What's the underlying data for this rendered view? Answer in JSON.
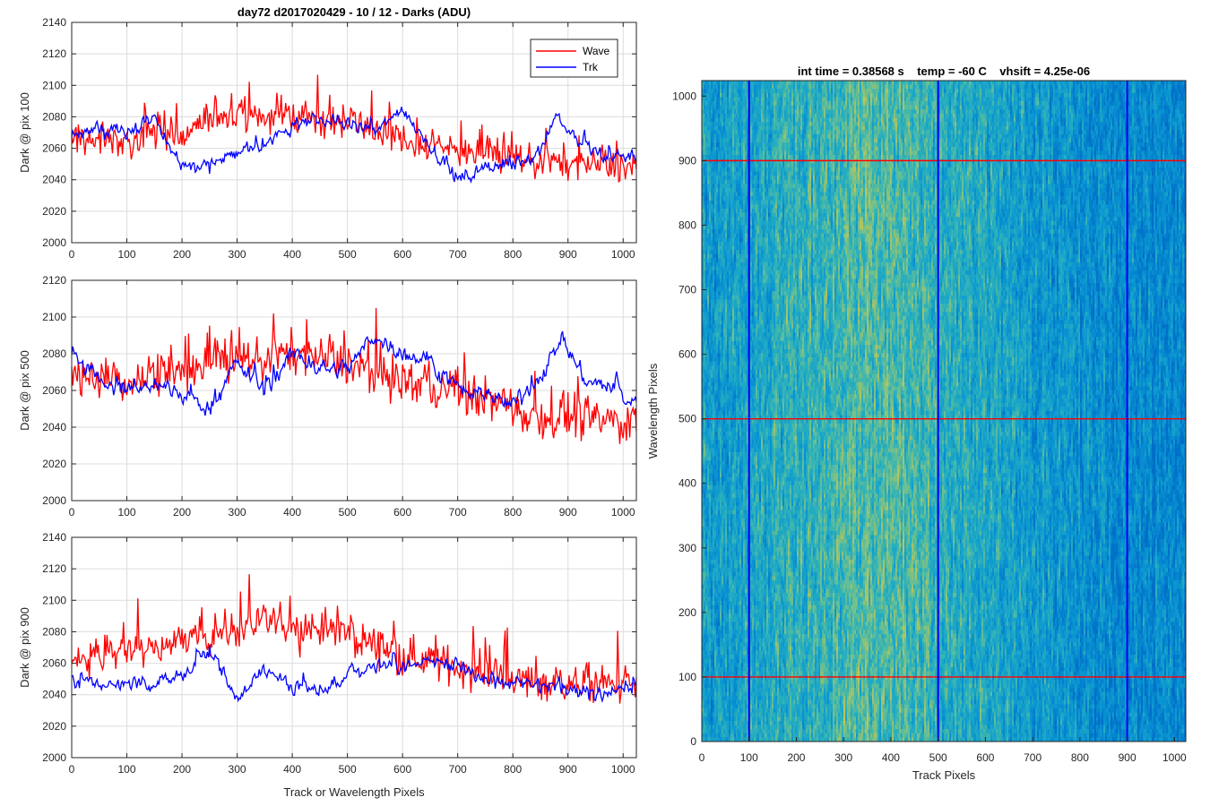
{
  "figure": {
    "title": "day72 d2017020429 - 10 / 12 - Darks (ADU)"
  },
  "chart_data": [
    {
      "type": "line",
      "ylabel": "Dark @ pix 100",
      "xlabel": "",
      "xlim": [
        0,
        1024
      ],
      "ylim": [
        2000,
        2140
      ],
      "xticks": [
        0,
        100,
        200,
        300,
        400,
        500,
        600,
        700,
        800,
        900,
        1000
      ],
      "yticks": [
        2000,
        2020,
        2040,
        2060,
        2080,
        2100,
        2120,
        2140
      ],
      "grid": true,
      "legend": {
        "position": "top-right",
        "entries": [
          "Wave",
          "Trk"
        ]
      },
      "series": [
        {
          "name": "Wave",
          "color": "#ff0000",
          "x": [
            0,
            50,
            100,
            150,
            200,
            250,
            300,
            350,
            400,
            450,
            500,
            550,
            600,
            650,
            700,
            750,
            800,
            850,
            900,
            950,
            1024
          ],
          "values": [
            2065,
            2068,
            2062,
            2070,
            2066,
            2078,
            2082,
            2080,
            2083,
            2078,
            2076,
            2072,
            2066,
            2062,
            2060,
            2056,
            2054,
            2052,
            2050,
            2050,
            2048
          ],
          "noise": 11
        },
        {
          "name": "Trk",
          "color": "#0000ff",
          "x": [
            0,
            50,
            100,
            150,
            200,
            250,
            300,
            350,
            400,
            450,
            500,
            550,
            600,
            650,
            700,
            750,
            800,
            850,
            880,
            920,
            960,
            1024
          ],
          "values": [
            2068,
            2072,
            2070,
            2078,
            2050,
            2048,
            2058,
            2062,
            2074,
            2078,
            2075,
            2070,
            2085,
            2062,
            2040,
            2048,
            2048,
            2060,
            2082,
            2062,
            2055,
            2056
          ],
          "noise": 7
        }
      ]
    },
    {
      "type": "line",
      "ylabel": "Dark @ pix 500",
      "xlabel": "",
      "xlim": [
        0,
        1024
      ],
      "ylim": [
        2000,
        2120
      ],
      "xticks": [
        0,
        100,
        200,
        300,
        400,
        500,
        600,
        700,
        800,
        900,
        1000
      ],
      "yticks": [
        2000,
        2020,
        2040,
        2060,
        2080,
        2100,
        2120
      ],
      "grid": true,
      "series": [
        {
          "name": "Wave",
          "color": "#ff0000",
          "x": [
            0,
            50,
            100,
            150,
            200,
            250,
            300,
            350,
            400,
            450,
            500,
            550,
            600,
            650,
            700,
            750,
            800,
            850,
            900,
            950,
            1024
          ],
          "values": [
            2068,
            2066,
            2064,
            2070,
            2070,
            2075,
            2076,
            2078,
            2080,
            2078,
            2075,
            2070,
            2066,
            2062,
            2060,
            2056,
            2050,
            2046,
            2046,
            2044,
            2042
          ],
          "noise": 12
        },
        {
          "name": "Trk",
          "color": "#0000ff",
          "x": [
            0,
            50,
            100,
            150,
            200,
            250,
            300,
            350,
            400,
            450,
            500,
            550,
            600,
            650,
            700,
            750,
            800,
            850,
            890,
            930,
            970,
            1024
          ],
          "values": [
            2080,
            2066,
            2060,
            2064,
            2058,
            2050,
            2075,
            2060,
            2080,
            2072,
            2072,
            2090,
            2080,
            2076,
            2060,
            2058,
            2052,
            2068,
            2088,
            2066,
            2062,
            2052
          ],
          "noise": 7
        }
      ]
    },
    {
      "type": "line",
      "ylabel": "Dark @ pix 900",
      "xlabel": "Track or Wavelength Pixels",
      "xlim": [
        0,
        1024
      ],
      "ylim": [
        2000,
        2140
      ],
      "xticks": [
        0,
        100,
        200,
        300,
        400,
        500,
        600,
        700,
        800,
        900,
        1000
      ],
      "yticks": [
        2000,
        2020,
        2040,
        2060,
        2080,
        2100,
        2120,
        2140
      ],
      "grid": true,
      "series": [
        {
          "name": "Wave",
          "color": "#ff0000",
          "x": [
            0,
            50,
            100,
            150,
            200,
            250,
            300,
            350,
            400,
            450,
            500,
            550,
            600,
            650,
            700,
            750,
            800,
            850,
            900,
            950,
            1024
          ],
          "values": [
            2066,
            2064,
            2068,
            2070,
            2074,
            2078,
            2082,
            2086,
            2084,
            2082,
            2078,
            2072,
            2066,
            2062,
            2058,
            2054,
            2050,
            2048,
            2047,
            2046,
            2046
          ],
          "noise": 12
        },
        {
          "name": "Trk",
          "color": "#0000ff",
          "x": [
            0,
            50,
            100,
            150,
            200,
            250,
            300,
            350,
            400,
            450,
            500,
            550,
            600,
            650,
            700,
            750,
            800,
            850,
            900,
            950,
            1024
          ],
          "values": [
            2050,
            2046,
            2046,
            2048,
            2052,
            2068,
            2038,
            2056,
            2046,
            2040,
            2054,
            2060,
            2058,
            2060,
            2058,
            2050,
            2046,
            2044,
            2044,
            2042,
            2044
          ],
          "noise": 7
        }
      ]
    },
    {
      "type": "heatmap",
      "title": "int time = 0.38568 s    temp = -60 C    vhsift = 4.25e-06",
      "xlabel": "Track Pixels",
      "ylabel": "Wavelength Pixels",
      "xlim": [
        0,
        1024
      ],
      "ylim": [
        0,
        1024
      ],
      "xticks": [
        0,
        100,
        200,
        300,
        400,
        500,
        600,
        700,
        800,
        900,
        1000
      ],
      "yticks": [
        0,
        100,
        200,
        300,
        400,
        500,
        600,
        700,
        800,
        900,
        1000
      ],
      "colormap": "parula",
      "row_markers": {
        "color": "#ff0000",
        "values": [
          100,
          500,
          900
        ]
      },
      "column_markers": {
        "color": "#0000ff",
        "values": [
          100,
          500,
          900
        ]
      },
      "intensity_profile": {
        "x": [
          0,
          100,
          200,
          300,
          350,
          400,
          450,
          500,
          600,
          700,
          800,
          900,
          1024
        ],
        "level": [
          0.3,
          0.36,
          0.44,
          0.52,
          0.56,
          0.55,
          0.5,
          0.46,
          0.38,
          0.3,
          0.22,
          0.18,
          0.15
        ]
      }
    }
  ]
}
